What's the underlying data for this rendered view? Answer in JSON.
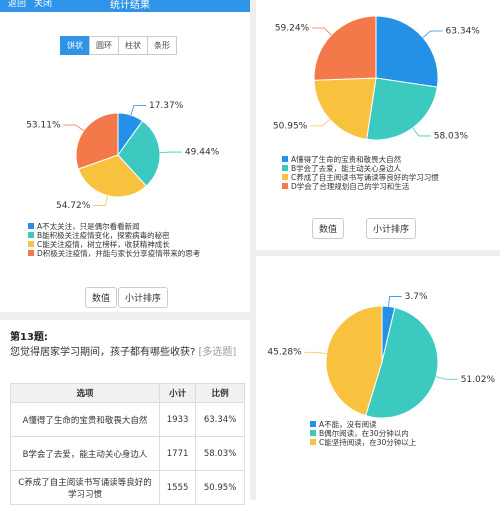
{
  "header": {
    "back": "返回",
    "close": "关闭",
    "title": "统计结果"
  },
  "tabs": [
    "饼状",
    "圆环",
    "柱状",
    "条形"
  ],
  "buttons": [
    "数值",
    "小计排序"
  ],
  "charts": [
    {
      "type": "pie",
      "values": [
        17.37,
        49.44,
        54.72,
        53.11
      ],
      "value_labels": [
        "17.37%",
        "49.44%",
        "54.72%",
        "53.11%"
      ],
      "categories": [
        "A不太关注，只是偶尔看看新闻",
        "B能积极关注疫情变化，探索病毒的秘密",
        "C能关注疫情，树立榜样，收获精神成长",
        "D积极关注疫情，并能与家长分享疫情带来的思考"
      ],
      "colors": [
        "#2490e6",
        "#3cc9c0",
        "#f8c23e",
        "#f3784a"
      ]
    },
    {
      "type": "pie",
      "values": [
        63.34,
        58.03,
        50.95,
        59.24
      ],
      "value_labels": [
        "63.34%",
        "58.03%",
        "50.95%",
        "59.24%"
      ],
      "categories": [
        "A懂得了生命的宝贵和敬畏大自然",
        "B学会了去爱，能主动关心身边人",
        "C养成了自主阅读书写诵读等良好的学习习惯",
        "D学会了合理规划自己的学习和生活"
      ],
      "colors": [
        "#2490e6",
        "#3cc9c0",
        "#f8c23e",
        "#f3784a"
      ]
    },
    {
      "type": "pie",
      "values": [
        3.7,
        51.02,
        45.28
      ],
      "value_labels": [
        "3.7%",
        "51.02%",
        "45.28%"
      ],
      "categories": [
        "A不能，没有阅读",
        "B偶尔阅读，在30分钟以内",
        "C能坚持阅读，在30分钟以上"
      ],
      "colors": [
        "#2490e6",
        "#3cc9c0",
        "#f8c23e"
      ]
    }
  ],
  "question": {
    "number": "第13题:",
    "text": "您觉得居家学习期间，孩子都有哪些收获?",
    "tag": "[多选题]"
  },
  "table": {
    "headers": [
      "选项",
      "小计",
      "比例"
    ],
    "rows": [
      [
        "A懂得了生命的宝贵和敬畏大自然",
        1933,
        "63.34%"
      ],
      [
        "B学会了去爱，能主动关心身边人",
        1771,
        "58.03%"
      ],
      [
        "C养成了自主阅读书写诵读等良好的学习习惯",
        1555,
        "50.95%"
      ]
    ]
  }
}
